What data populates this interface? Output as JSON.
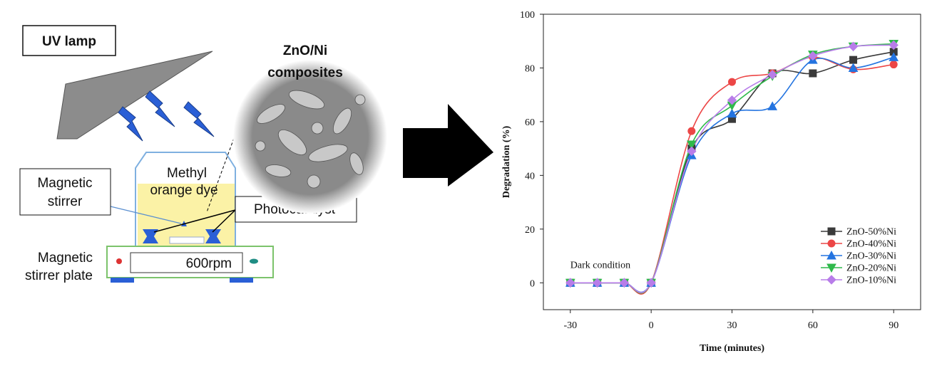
{
  "diagram": {
    "uv_lamp": "UV lamp",
    "composite": [
      "ZnO/Ni",
      "composites"
    ],
    "dye": [
      "Methyl",
      "orange dye"
    ],
    "stirrer": [
      "Magnetic",
      "stirrer"
    ],
    "photocatalyst": "Photocatalyst",
    "plate": [
      "Magnetic",
      "stirrer plate"
    ],
    "speed": "600rpm"
  },
  "chart_data": {
    "type": "line",
    "x_label": "Time (minutes)",
    "y_label": "Degradation (%)",
    "annotation": {
      "text": "Dark condition",
      "x": -30,
      "y": 5
    },
    "x": [
      -30,
      -20,
      -10,
      0,
      15,
      30,
      45,
      60,
      75,
      90
    ],
    "xlim": [
      -40,
      100
    ],
    "xticks": [
      -30,
      0,
      30,
      60,
      90
    ],
    "ylim": [
      -10,
      100
    ],
    "yticks": [
      0,
      20,
      40,
      60,
      80,
      100
    ],
    "legend": "lower right",
    "series": [
      {
        "name": "ZnO-50%Ni",
        "color": "#3a3a3a",
        "marker": "square",
        "values": [
          0,
          0,
          0,
          0,
          50,
          61,
          78,
          78,
          83,
          86
        ]
      },
      {
        "name": "ZnO-40%Ni",
        "color": "#ec4646",
        "marker": "circle",
        "values": [
          0,
          0,
          0,
          0,
          56.5,
          74.8,
          78,
          84,
          79.5,
          81.3
        ]
      },
      {
        "name": "ZnO-30%Ni",
        "color": "#2474e0",
        "marker": "triangle-up",
        "values": [
          0,
          0,
          0,
          0,
          47.5,
          63,
          65.7,
          83,
          80,
          84
        ]
      },
      {
        "name": "ZnO-20%Ni",
        "color": "#2fb94b",
        "marker": "triangle-down",
        "values": [
          0,
          0,
          0,
          0,
          51.5,
          66,
          77,
          85,
          88,
          89
        ]
      },
      {
        "name": "ZnO-10%Ni",
        "color": "#b87de9",
        "marker": "diamond",
        "values": [
          0,
          0,
          0,
          0,
          49,
          68,
          77.5,
          84.5,
          88,
          88.5
        ]
      }
    ]
  }
}
